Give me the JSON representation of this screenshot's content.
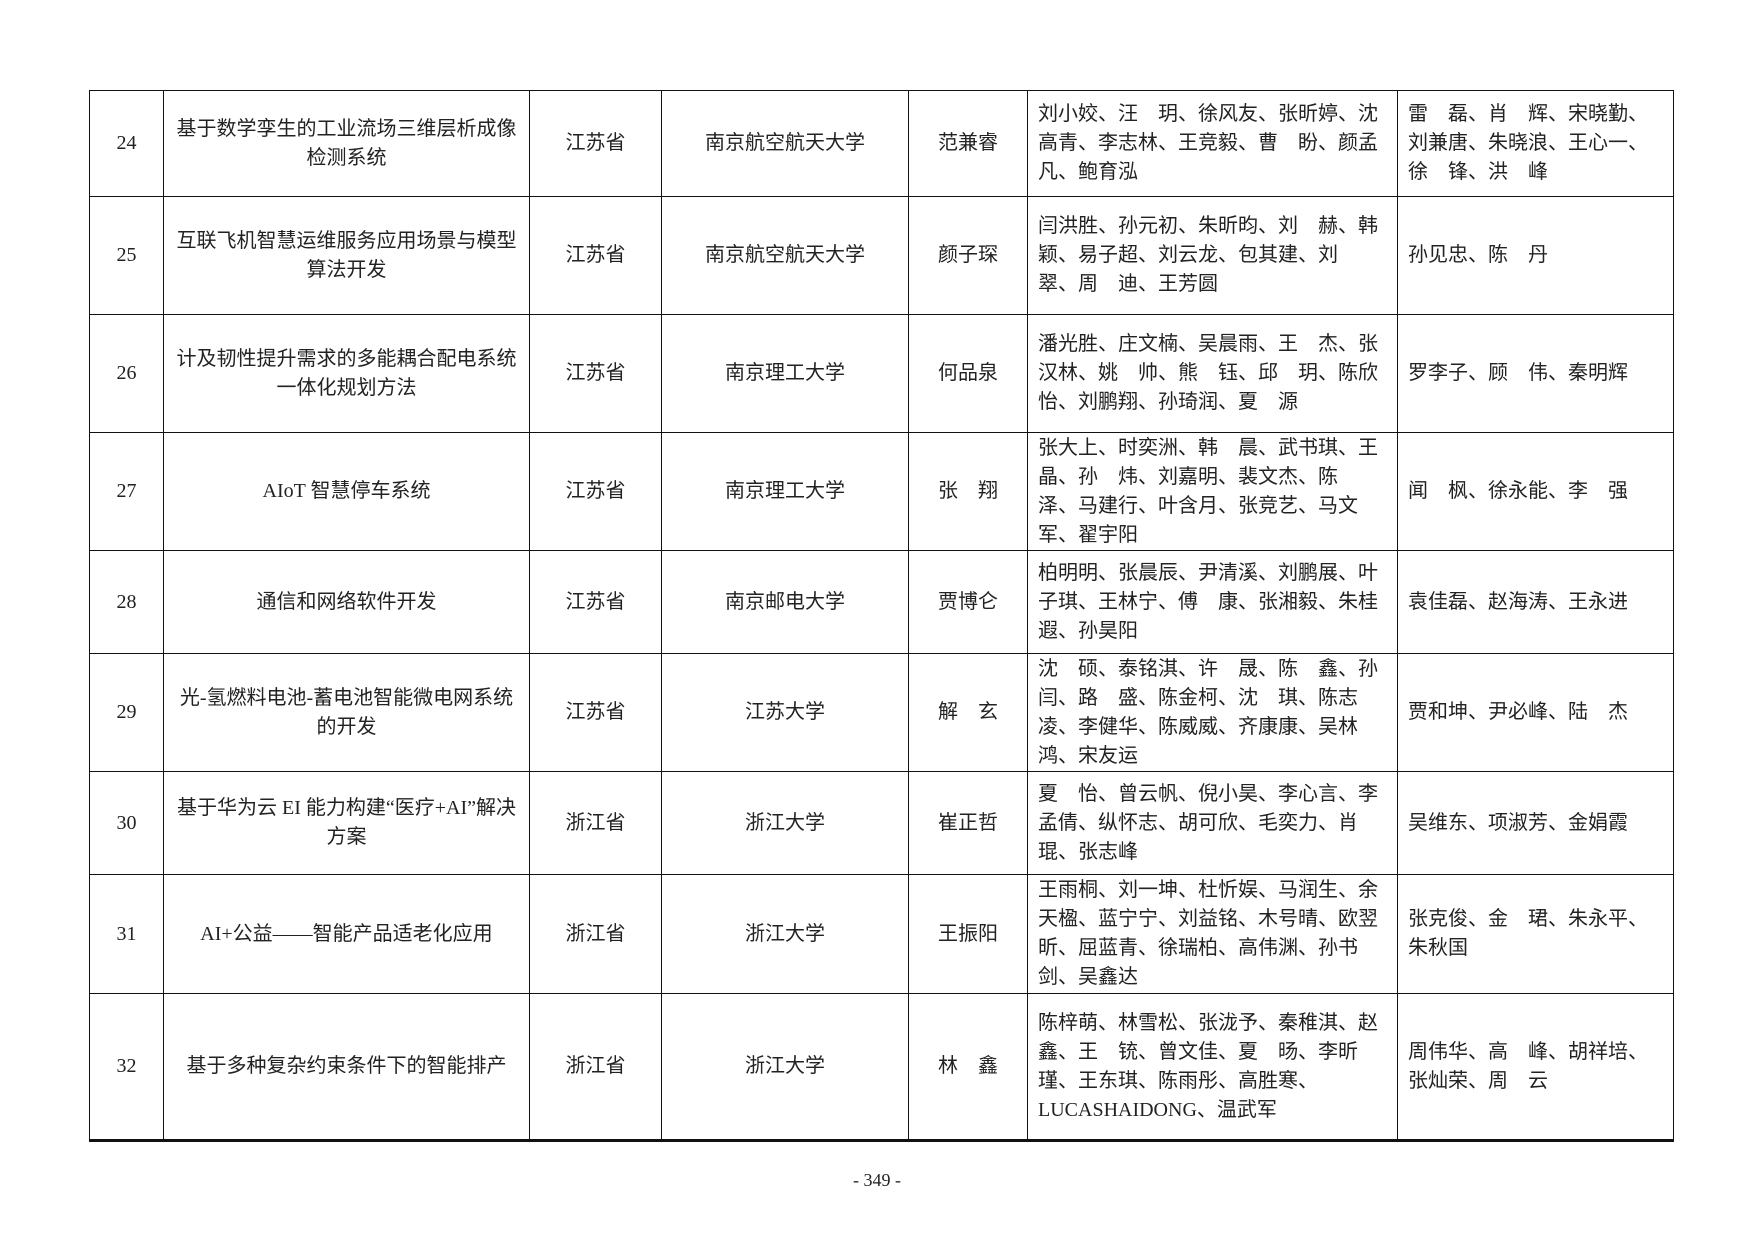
{
  "rows": [
    {
      "no": "24",
      "project": "基于数学孪生的工业流场三维层析成像检测系统",
      "province": "江苏省",
      "school": "南京航空航天大学",
      "leader": "范兼睿",
      "members": "刘小姣、汪　玥、徐风友、张昕婷、沈高青、李志林、王竞毅、曹　盼、颜孟凡、鲍育泓",
      "advisors": "雷　磊、肖　辉、宋晓勤、刘兼唐、朱晓浪、王心一、徐　锋、洪　峰"
    },
    {
      "no": "25",
      "project": "互联飞机智慧运维服务应用场景与模型算法开发",
      "province": "江苏省",
      "school": "南京航空航天大学",
      "leader": "颜子琛",
      "members": "闫洪胜、孙元初、朱昕昀、刘　赫、韩　颖、易子超、刘云龙、包其建、刘　翠、周　迪、王芳圆",
      "advisors": "孙见忠、陈　丹"
    },
    {
      "no": "26",
      "project": "计及韧性提升需求的多能耦合配电系统一体化规划方法",
      "province": "江苏省",
      "school": "南京理工大学",
      "leader": "何品泉",
      "members": "潘光胜、庄文楠、吴晨雨、王　杰、张汉林、姚　帅、熊　钰、邱　玥、陈欣怡、刘鹏翔、孙琦润、夏　源",
      "advisors": "罗李子、顾　伟、秦明辉"
    },
    {
      "no": "27",
      "project": "AIoT 智慧停车系统",
      "province": "江苏省",
      "school": "南京理工大学",
      "leader": "张　翔",
      "members": "张大上、时奕洲、韩　晨、武书琪、王　晶、孙　炜、刘嘉明、裴文杰、陈　泽、马建行、叶含月、张竞艺、马文军、翟宇阳",
      "advisors": "闻　枫、徐永能、李　强"
    },
    {
      "no": "28",
      "project": "通信和网络软件开发",
      "province": "江苏省",
      "school": "南京邮电大学",
      "leader": "贾博仑",
      "members": "柏明明、张晨辰、尹清溪、刘鹏展、叶子琪、王林宁、傅　康、张湘毅、朱桂遐、孙昊阳",
      "advisors": "袁佳磊、赵海涛、王永进"
    },
    {
      "no": "29",
      "project": "光-氢燃料电池-蓄电池智能微电网系统的开发",
      "province": "江苏省",
      "school": "江苏大学",
      "leader": "解　玄",
      "members": "沈　硕、泰铭淇、许　晟、陈　鑫、孙　闫、路　盛、陈金柯、沈　琪、陈志凌、李健华、陈威威、齐康康、吴林鸿、宋友运",
      "advisors": "贾和坤、尹必峰、陆　杰"
    },
    {
      "no": "30",
      "project": "基于华为云 EI 能力构建“医疗+AI”解决方案",
      "province": "浙江省",
      "school": "浙江大学",
      "leader": "崔正哲",
      "members": "夏　怡、曾云帆、倪小昊、李心言、李孟倩、纵怀志、胡可欣、毛奕力、肖　琨、张志峰",
      "advisors": "吴维东、项淑芳、金娟霞"
    },
    {
      "no": "31",
      "project": "AI+公益——智能产品适老化应用",
      "province": "浙江省",
      "school": "浙江大学",
      "leader": "王振阳",
      "members": "王雨桐、刘一坤、杜忻娱、马润生、余天楹、蓝宁宁、刘益铭、木号晴、欧翌昕、屈蓝青、徐瑞柏、高伟渊、孙书剑、吴鑫达",
      "advisors": "张克俊、金　珺、朱永平、朱秋国"
    },
    {
      "no": "32",
      "project": "基于多种复杂约束条件下的智能排产",
      "province": "浙江省",
      "school": "浙江大学",
      "leader": "林　鑫",
      "members": "陈梓萌、林雪松、张泷予、秦稚淇、赵　鑫、王　铳、曾文佳、夏　旸、李昕瑾、王东琪、陈雨彤、高胜寒、LUCASHAIDONG、温武军",
      "advisors": "周伟华、高　峰、胡祥培、张灿荣、周　云"
    }
  ],
  "page_number": "- 349 -"
}
